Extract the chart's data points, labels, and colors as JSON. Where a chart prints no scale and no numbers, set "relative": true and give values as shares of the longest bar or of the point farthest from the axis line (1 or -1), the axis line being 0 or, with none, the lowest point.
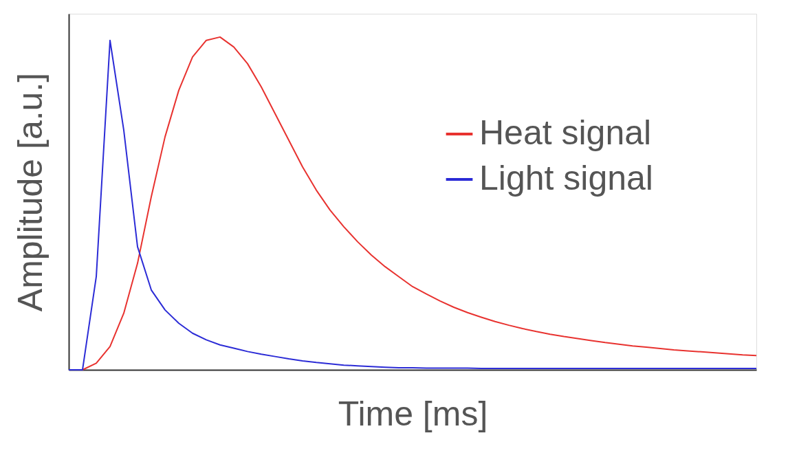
{
  "chart_data": {
    "type": "line",
    "relative": true,
    "xlabel": "Time [ms]",
    "ylabel": "Amplitude [a.u.]",
    "legend": "top right",
    "grid": false,
    "marker": "none",
    "line_style": "solid",
    "categories": [
      null,
      null,
      null,
      null,
      null,
      null,
      null,
      null,
      null,
      null,
      null,
      null,
      null,
      null,
      null,
      null,
      null,
      null,
      null,
      null,
      null,
      null,
      null,
      null,
      null,
      null,
      null,
      null,
      null,
      null,
      null,
      null,
      null,
      null,
      null,
      null,
      null,
      null,
      null,
      null,
      null,
      null,
      null,
      null,
      null,
      null,
      null,
      null,
      null,
      null,
      null
    ],
    "series": [
      {
        "name": "Heat signal",
        "color": "#e8322f",
        "values": [
          0,
          0,
          0.02,
          0.07,
          0.17,
          0.32,
          0.52,
          0.7,
          0.84,
          0.94,
          0.99,
          1.0,
          0.97,
          0.92,
          0.85,
          0.77,
          0.69,
          0.61,
          0.54,
          0.48,
          0.43,
          0.385,
          0.345,
          0.31,
          0.28,
          0.25,
          0.228,
          0.207,
          0.188,
          0.172,
          0.158,
          0.145,
          0.134,
          0.124,
          0.115,
          0.107,
          0.1,
          0.094,
          0.088,
          0.082,
          0.077,
          0.072,
          0.068,
          0.064,
          0.06,
          0.057,
          0.054,
          0.051,
          0.048,
          0.045,
          0.043
        ]
      },
      {
        "name": "Light signal",
        "color": "#2b2bd6",
        "values": [
          0,
          0,
          0.28,
          0.99,
          0.72,
          0.37,
          0.24,
          0.18,
          0.14,
          0.11,
          0.09,
          0.075,
          0.065,
          0.055,
          0.047,
          0.04,
          0.033,
          0.027,
          0.022,
          0.018,
          0.014,
          0.012,
          0.01,
          0.008,
          0.006,
          0.006,
          0.005,
          0.005,
          0.005,
          0.005,
          0.004,
          0.004,
          0.004,
          0.004,
          0.004,
          0.004,
          0.004,
          0.004,
          0.004,
          0.004,
          0.004,
          0.004,
          0.004,
          0.004,
          0.004,
          0.004,
          0.004,
          0.004,
          0.004,
          0.004,
          0.004
        ]
      }
    ]
  }
}
